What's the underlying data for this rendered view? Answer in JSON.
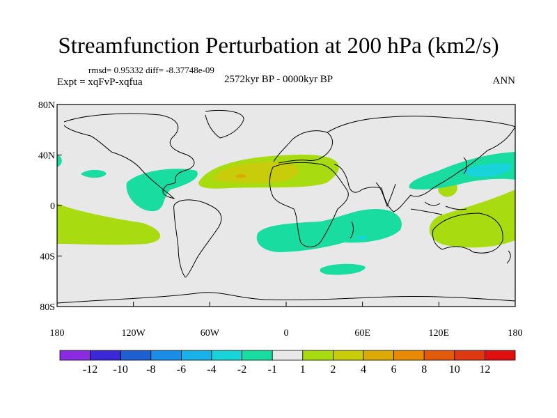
{
  "title": "Streamfunction Perturbation at 200 hPa (km2/s)",
  "stats": "rmsd= 0.95332 diff= -8.37748e-09",
  "experiment": "Expt = xqFvP-xqfua",
  "period": "2572kyr BP - 0000kyr BP",
  "season": "ANN",
  "axes": {
    "lat_labels": [
      "80N",
      "40N",
      "0",
      "40S",
      "80S"
    ],
    "lon_labels": [
      "180",
      "120W",
      "60W",
      "0",
      "60E",
      "120E",
      "180"
    ]
  },
  "colorbar": {
    "labels": [
      "-12",
      "-10",
      "-8",
      "-6",
      "-4",
      "-2",
      "-1",
      "1",
      "2",
      "4",
      "6",
      "8",
      "10",
      "12"
    ],
    "colors": [
      "#8a2be2",
      "#3b28d6",
      "#1f5fd0",
      "#1a8ee6",
      "#19b2e8",
      "#18d4d9",
      "#19dca0",
      "#e8e8e8",
      "#a8dc10",
      "#c8cc0a",
      "#dcaa06",
      "#e88a06",
      "#e25a0c",
      "#dd3a12",
      "#e01010"
    ]
  },
  "map_colors": {
    "background": "#e8e8e8",
    "level_pos_1_2": "#a8dc10",
    "level_pos_2_4": "#c8cc0a",
    "level_pos_4_6": "#dcaa06",
    "level_neg_1_2": "#19dca0",
    "level_neg_2_4": "#18d4d9",
    "coastline": "#000000"
  }
}
